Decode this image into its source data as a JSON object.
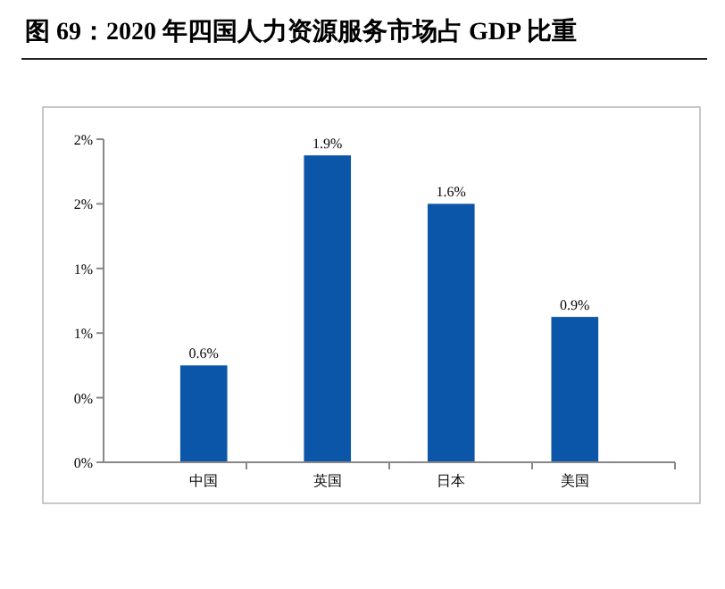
{
  "chart_data": {
    "type": "bar",
    "title": "图 69：2020 年四国人力资源服务市场占 GDP 比重",
    "categories": [
      "中国",
      "英国",
      "日本",
      "美国"
    ],
    "values": [
      0.6,
      1.9,
      1.6,
      0.9
    ],
    "value_labels": [
      "0.6%",
      "1.9%",
      "1.6%",
      "0.9%"
    ],
    "color": "#0b56a8",
    "ylim": [
      0,
      2
    ],
    "yticks": [
      {
        "value": 0,
        "label": "0%"
      },
      {
        "value": 0.4,
        "label": "0%"
      },
      {
        "value": 0.8,
        "label": "1%"
      },
      {
        "value": 1.2,
        "label": "1%"
      },
      {
        "value": 1.6,
        "label": "2%"
      },
      {
        "value": 2.0,
        "label": "2%"
      }
    ],
    "grid": false
  }
}
